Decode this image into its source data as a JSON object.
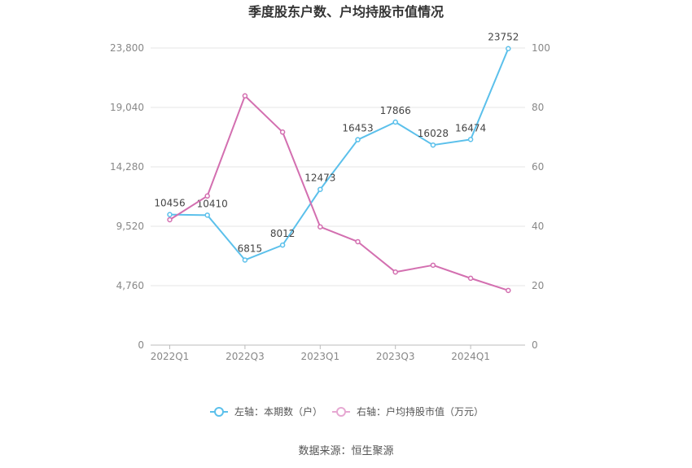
{
  "chart_data": {
    "type": "line",
    "title": "季度股东户数、户均持股市值情况",
    "categories": [
      "2022Q1",
      "2022Q2",
      "2022Q3",
      "2022Q4",
      "2023Q1",
      "2023Q2",
      "2023Q3",
      "2023Q4",
      "2024Q1",
      "2024Q2"
    ],
    "x_tick_labels": [
      "2022Q1",
      "",
      "2022Q3",
      "",
      "2023Q1",
      "",
      "2023Q3",
      "",
      "2024Q1",
      ""
    ],
    "left_axis": {
      "min": 0,
      "max": 23800,
      "ticks": [
        "0",
        "4,760",
        "9,520",
        "14,280",
        "19,040",
        "23,800"
      ],
      "tick_values": [
        0,
        4760,
        9520,
        14280,
        19040,
        23800
      ]
    },
    "right_axis": {
      "min": 0,
      "max": 100,
      "ticks": [
        "0",
        "20",
        "40",
        "60",
        "80",
        "100"
      ],
      "tick_values": [
        0,
        20,
        40,
        60,
        80,
        100
      ]
    },
    "series": [
      {
        "name": "左轴：本期数（户）",
        "axis": "left",
        "color": "#5bc0eb",
        "values": [
          10456,
          10410,
          6815,
          8012,
          12473,
          16453,
          17866,
          16028,
          16474,
          23752
        ],
        "labels": [
          "10456",
          "10410",
          "6815",
          "8012",
          "12473",
          "16453",
          "17866",
          "16028",
          "16474",
          "23752"
        ]
      },
      {
        "name": "右轴：户均持股市值（万元）",
        "axis": "right",
        "color": "#d36fb0",
        "values": [
          42.2,
          50.2,
          83.9,
          71.7,
          39.8,
          34.8,
          24.6,
          26.9,
          22.5,
          18.4
        ]
      }
    ],
    "grid": true,
    "legend_position": "bottom"
  },
  "source": "数据来源：恒生聚源"
}
